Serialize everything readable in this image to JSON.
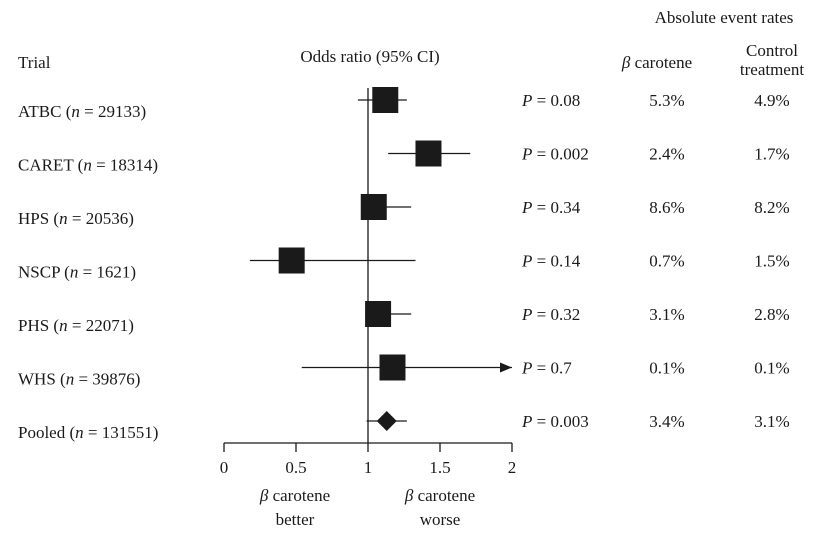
{
  "chart_data": {
    "type": "forest",
    "header": {
      "group_title": "Absolute event rates",
      "trial_col": "Trial",
      "or_col": "Odds ratio (95% CI)",
      "treat_col_symbol": "β",
      "treat_col_word": "carotene",
      "control_col_line1": "Control",
      "control_col_line2": "treatment"
    },
    "xaxis": {
      "ticks": [
        0,
        0.5,
        1,
        1.5,
        2
      ],
      "tick_labels": [
        "0",
        "0.5",
        "1",
        "1.5",
        "2"
      ],
      "range": [
        0,
        2
      ],
      "reference_line": 1,
      "left_label_symbol": "β",
      "left_label_word": "carotene",
      "left_label_line2": "better",
      "right_label_symbol": "β",
      "right_label_word": "carotene",
      "right_label_line2": "worse"
    },
    "rows": [
      {
        "name": "ATBC",
        "n": "29133",
        "or": 1.12,
        "lo": 0.93,
        "hi": 1.27,
        "p_label": "P",
        "p_value": "= 0.08",
        "treat_rate": "5.3%",
        "control_rate": "4.9%",
        "marker": "square"
      },
      {
        "name": "CARET",
        "n": "18314",
        "or": 1.42,
        "lo": 1.14,
        "hi": 1.71,
        "p_label": "P",
        "p_value": "= 0.002",
        "treat_rate": "2.4%",
        "control_rate": "1.7%",
        "marker": "square"
      },
      {
        "name": "HPS",
        "n": "20536",
        "or": 1.04,
        "lo": 0.97,
        "hi": 1.3,
        "p_label": "P",
        "p_value": "= 0.34",
        "treat_rate": "8.6%",
        "control_rate": "8.2%",
        "marker": "square"
      },
      {
        "name": "NSCP",
        "n": "1621",
        "or": 0.47,
        "lo": 0.18,
        "hi": 1.33,
        "p_label": "P",
        "p_value": "= 0.14",
        "treat_rate": "0.7%",
        "control_rate": "1.5%",
        "marker": "square"
      },
      {
        "name": "PHS",
        "n": "22071",
        "or": 1.07,
        "lo": 0.98,
        "hi": 1.3,
        "p_label": "P",
        "p_value": "= 0.32",
        "treat_rate": "3.1%",
        "control_rate": "2.8%",
        "marker": "square"
      },
      {
        "name": "WHS",
        "n": "39876",
        "or": 1.17,
        "lo": 0.54,
        "hi": 2,
        "arrow_right": true,
        "p_label": "P",
        "p_value": "= 0.7",
        "treat_rate": "0.1%",
        "control_rate": "0.1%",
        "marker": "square"
      },
      {
        "name": "Pooled",
        "n": "131551",
        "or": 1.13,
        "lo": 0.99,
        "hi": 1.27,
        "p_label": "P",
        "p_value": "= 0.003",
        "treat_rate": "3.4%",
        "control_rate": "3.1%",
        "marker": "diamond"
      }
    ]
  }
}
